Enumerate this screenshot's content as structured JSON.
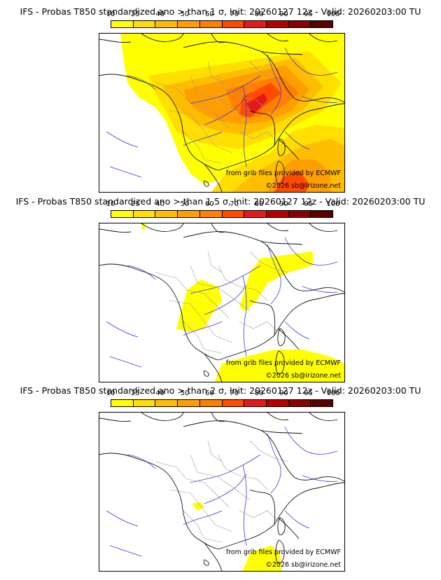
{
  "colorbar": {
    "ticks": [
      "10",
      "25",
      "40",
      "50",
      "60",
      "70",
      "80",
      "90",
      "95",
      "100"
    ],
    "colors": [
      "#ffff00",
      "#ffde00",
      "#ffbd00",
      "#ff9e00",
      "#ff7f00",
      "#ff4a00",
      "#e31a1c",
      "#b50000",
      "#8a0000",
      "#5a0000"
    ]
  },
  "panels": [
    {
      "title": "IFS - Probas T850  standardized ano > than 1 σ, Init: 20260127 12z - Valid: 20260203:00 TU",
      "source_credit": "from grib files provided by ECMWF",
      "copyright": "©2026 sb@irizone.net"
    },
    {
      "title": "IFS - Probas T850  standardized ano > than 1.5 σ, Init: 20260127 12z - Valid: 20260203:00 TU",
      "source_credit": "from grib files provided by ECMWF",
      "copyright": "©2026 sb@irizone.net"
    },
    {
      "title": "IFS - Probas T850  standardized ano > than 2 σ, Init: 20260127 12z - Valid: 20260203:00 TU",
      "source_credit": "from grib files provided by ECMWF",
      "copyright": "©2026 sb@irizone.net"
    }
  ]
}
